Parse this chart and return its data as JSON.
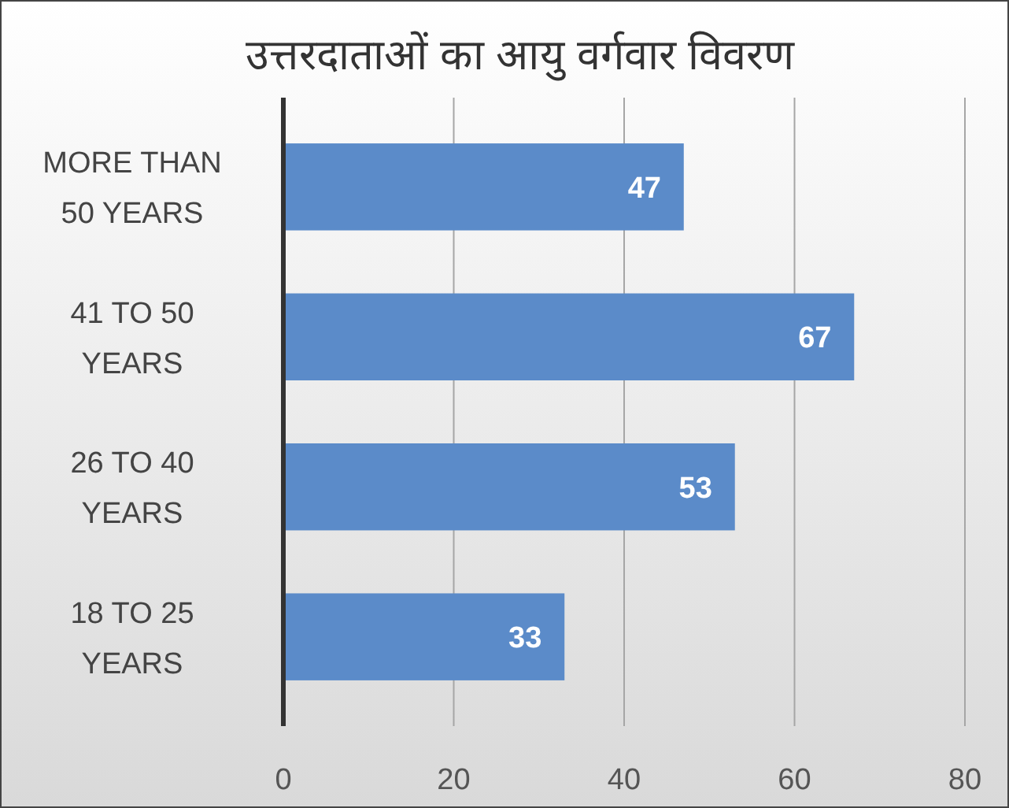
{
  "chart_data": {
    "type": "bar",
    "orientation": "horizontal",
    "title": "उत्तरदाताओं का आयु वर्गवार विवरण",
    "categories": [
      "MORE THAN 50 YEARS",
      "41 TO 50 YEARS",
      "26 TO 40 YEARS",
      "18 TO 25 YEARS"
    ],
    "values": [
      47,
      67,
      53,
      33
    ],
    "color": "#5b8bc9",
    "xlim": [
      0,
      80
    ],
    "xticks": [
      0,
      20,
      40,
      60,
      80
    ],
    "grid": "x",
    "data_labels": true
  }
}
